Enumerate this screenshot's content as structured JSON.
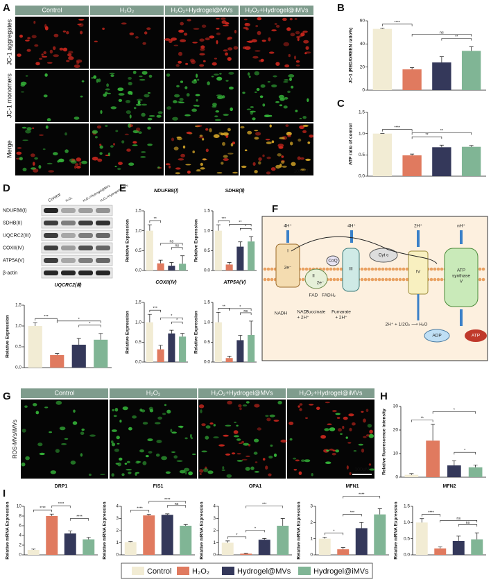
{
  "panel_labels": [
    "A",
    "B",
    "C",
    "D",
    "E",
    "F",
    "G",
    "H",
    "I"
  ],
  "figure_a": {
    "columns": [
      "Control",
      "H₂O₂",
      "H₂O₂+Hydrogel@MVs",
      "H₂O₂+Hydrogel@iMVs"
    ],
    "rows": [
      "JC-1 aggregates",
      "JC-1 monomers",
      "Merge"
    ],
    "scale_bar": "100μM"
  },
  "figure_d": {
    "lanes": [
      "Control",
      "H₂O₂",
      "H₂O₂+Hydrogel@MVs",
      "H₂O₂+Hydrogel@iMVs"
    ],
    "proteins": [
      "NDUFB8(I)",
      "SDHB(II)",
      "UQCRC2(III)",
      "COXII(IV)",
      "ATP5A(V)",
      "β-actin"
    ]
  },
  "figure_f": {
    "h1": "4H⁺",
    "h3": "4H⁺",
    "h4": "2H⁺",
    "hn": "nH⁺",
    "c1": "I",
    "c2": "II",
    "c3": "III",
    "c4": "IV",
    "cytc": "Cyt c",
    "coq": "CoQ",
    "e1": "2e⁻",
    "e2": "2e⁻",
    "nadh": "NADH",
    "nad": "NAD⁺",
    "nad_h": "+ 2H⁺",
    "fad": "FAD",
    "fadh": "FADH₂",
    "succ": "Succinate",
    "fum": "Fumarate",
    "fum_h": "+ 2H⁺",
    "water": "2H⁺ + 1/2O₂ ⟶ H₂O",
    "atps": "ATP",
    "atps2": "synthase",
    "atps3": "V",
    "adp": "ADP",
    "atp": "ATP"
  },
  "figure_g": {
    "columns": [
      "Control",
      "H₂O₂",
      "H₂O₂+Hydrogel@MVs",
      "H₂O₂+Hydrogel@iMVs"
    ],
    "row": "ROS-MVs/iMVs",
    "scale_bar": "100μM"
  },
  "legend": {
    "items": [
      {
        "name": "Control",
        "color": "#f2ecd4"
      },
      {
        "name": "H₂O₂",
        "color": "#e07a5f"
      },
      {
        "name": "Hydrogel@MVs",
        "color": "#34385a"
      },
      {
        "name": "Hydrogel@iMVs",
        "color": "#80b595"
      }
    ]
  },
  "chart_data": [
    {
      "type": "bar",
      "ylabel": "JC-1 (RED/GREEN ratio%)",
      "ylim": [
        0,
        60
      ],
      "yticks": [
        0,
        20,
        40,
        60
      ],
      "values": [
        53,
        18,
        24,
        34
      ],
      "errors": [
        0.5,
        1.5,
        5,
        3.5
      ],
      "significance": [
        {
          "pair": [
            0,
            1
          ],
          "label": "****"
        },
        {
          "pair": [
            2,
            3
          ],
          "label": "**"
        },
        {
          "pair": [
            1,
            3
          ],
          "label": "ns"
        }
      ]
    },
    {
      "type": "bar",
      "ylabel": "ATP ratio of control",
      "ylim": [
        0,
        1.5
      ],
      "yticks": [
        {
          "value": 0,
          "label": "0.0"
        },
        {
          "value": 0.5,
          "label": "0.5"
        },
        {
          "value": 1,
          "label": "1.0"
        },
        {
          "value": 1.5,
          "label": "1.5"
        }
      ],
      "values": [
        1.0,
        0.49,
        0.68,
        0.69
      ],
      "errors": [
        0.0,
        0.03,
        0.05,
        0.03
      ],
      "significance": [
        {
          "pair": [
            0,
            1
          ],
          "label": "****"
        },
        {
          "pair": [
            1,
            2
          ],
          "label": "**"
        },
        {
          "pair": [
            1,
            3
          ],
          "label": "**"
        }
      ]
    },
    {
      "type": "bar",
      "title": "UQCRC2(Ⅲ)",
      "title_italic": true,
      "ylabel": "Relative Expression",
      "ylim": [
        0,
        1.5
      ],
      "yticks": [
        {
          "value": 0,
          "label": "0.0"
        },
        {
          "value": 0.5,
          "label": "0.5"
        },
        {
          "value": 1,
          "label": "1.0"
        },
        {
          "value": 1.5,
          "label": "1.5"
        }
      ],
      "values": [
        1.0,
        0.3,
        0.55,
        0.67
      ],
      "errors": [
        0.08,
        0.04,
        0.15,
        0.15
      ],
      "significance": [
        {
          "pair": [
            0,
            1
          ],
          "label": "***"
        },
        {
          "pair": [
            2,
            3
          ],
          "label": "*"
        },
        {
          "pair": [
            1,
            3
          ],
          "label": "*"
        }
      ]
    },
    {
      "type": "bar",
      "title": "NDUFB8(Ⅰ)",
      "title_italic": true,
      "ylabel": "Relative Expression",
      "ylim": [
        0,
        1.5
      ],
      "yticks": [
        {
          "value": 0,
          "label": "0.0"
        },
        {
          "value": 0.5,
          "label": "0.5"
        },
        {
          "value": 1,
          "label": "1.0"
        },
        {
          "value": 1.5,
          "label": "1.5"
        }
      ],
      "values": [
        1.0,
        0.18,
        0.12,
        0.17
      ],
      "errors": [
        0.15,
        0.08,
        0.08,
        0.2
      ],
      "significance": [
        {
          "pair": [
            0,
            1
          ],
          "label": "**"
        },
        {
          "pair": [
            2,
            3
          ],
          "label": "ns"
        },
        {
          "pair": [
            1,
            3
          ],
          "label": "ns"
        }
      ]
    },
    {
      "type": "bar",
      "title": "SDHB(Ⅱ)",
      "title_italic": true,
      "ylabel": "Relative Expression",
      "ylim": [
        0,
        1.5
      ],
      "yticks": [
        {
          "value": 0,
          "label": "0.0"
        },
        {
          "value": 0.5,
          "label": "0.5"
        },
        {
          "value": 1,
          "label": "1.0"
        },
        {
          "value": 1.5,
          "label": "1.5"
        }
      ],
      "values": [
        1.0,
        0.15,
        0.6,
        0.73
      ],
      "errors": [
        0.15,
        0.05,
        0.12,
        0.12
      ],
      "significance": [
        {
          "pair": [
            0,
            1
          ],
          "label": "***"
        },
        {
          "pair": [
            2,
            3
          ],
          "label": "*"
        },
        {
          "pair": [
            1,
            3
          ],
          "label": "**"
        }
      ]
    },
    {
      "type": "bar",
      "title": "COXII(Ⅳ)",
      "title_italic": true,
      "ylabel": "Relative Expression",
      "ylim": [
        0,
        1.5
      ],
      "yticks": [
        {
          "value": 0,
          "label": "0.0"
        },
        {
          "value": 0.5,
          "label": "0.5"
        },
        {
          "value": 1,
          "label": "1.0"
        },
        {
          "value": 1.5,
          "label": "1.5"
        }
      ],
      "values": [
        1.0,
        0.32,
        0.72,
        0.64
      ],
      "errors": [
        0.2,
        0.1,
        0.08,
        0.08
      ],
      "significance": [
        {
          "pair": [
            0,
            1
          ],
          "label": "***"
        },
        {
          "pair": [
            2,
            3
          ],
          "label": "*"
        },
        {
          "pair": [
            1,
            3
          ],
          "label": "*"
        }
      ]
    },
    {
      "type": "bar",
      "title": "ATP5A(Ⅴ)",
      "title_italic": true,
      "ylabel": "Relative Expression",
      "ylim": [
        0,
        1.5
      ],
      "yticks": [
        {
          "value": 0,
          "label": "0.0"
        },
        {
          "value": 0.5,
          "label": "0.5"
        },
        {
          "value": 1,
          "label": "1.0"
        },
        {
          "value": 1.5,
          "label": "1.5"
        }
      ],
      "values": [
        1.0,
        0.1,
        0.55,
        0.68
      ],
      "errors": [
        0.25,
        0.05,
        0.12,
        0.35
      ],
      "significance": [
        {
          "pair": [
            0,
            1
          ],
          "label": "**"
        },
        {
          "pair": [
            2,
            3
          ],
          "label": "ns"
        },
        {
          "pair": [
            1,
            3
          ],
          "label": "*"
        }
      ]
    },
    {
      "type": "bar",
      "ylabel": "Relative fluorescence intensity",
      "ylim": [
        0,
        30
      ],
      "yticks": [
        0,
        10,
        20,
        30
      ],
      "values": [
        1,
        15.5,
        5,
        4.2
      ],
      "errors": [
        0.5,
        7,
        2,
        1
      ],
      "significance": [
        {
          "pair": [
            0,
            1
          ],
          "label": "**"
        },
        {
          "pair": [
            2,
            3
          ],
          "label": "*"
        },
        {
          "pair": [
            1,
            3
          ],
          "label": "*"
        }
      ]
    },
    {
      "type": "bar",
      "title": "DRP1",
      "ylabel": "Relative mRNA Expression",
      "ylim": [
        0,
        10
      ],
      "yticks": [
        0,
        2,
        4,
        6,
        8,
        10
      ],
      "values": [
        1,
        8,
        4.4,
        3.2
      ],
      "errors": [
        0.2,
        0.4,
        0.5,
        0.4
      ],
      "significance": [
        {
          "pair": [
            0,
            1
          ],
          "label": "****"
        },
        {
          "pair": [
            1,
            2
          ],
          "label": "****"
        },
        {
          "pair": [
            2,
            3
          ],
          "label": "****"
        }
      ]
    },
    {
      "type": "bar",
      "title": "FIS1",
      "ylabel": "Relative mRNA Expression",
      "ylim": [
        0,
        4
      ],
      "yticks": [
        0,
        1,
        2,
        3,
        4
      ],
      "values": [
        1.05,
        3.25,
        3.3,
        2.4
      ],
      "errors": [
        0.05,
        0.08,
        0.08,
        0.1
      ],
      "significance": [
        {
          "pair": [
            0,
            1
          ],
          "label": "****"
        },
        {
          "pair": [
            2,
            3
          ],
          "label": "ns"
        },
        {
          "pair": [
            1,
            3
          ],
          "label": "****"
        }
      ]
    },
    {
      "type": "bar",
      "title": "OPA1",
      "ylabel": "Relative mRNA Expression",
      "ylim": [
        0,
        4
      ],
      "yticks": [
        0,
        1,
        2,
        3,
        4
      ],
      "values": [
        1.0,
        0.1,
        1.25,
        2.4
      ],
      "errors": [
        0.15,
        0.05,
        0.1,
        0.6
      ],
      "significance": [
        {
          "pair": [
            0,
            1
          ],
          "label": "*"
        },
        {
          "pair": [
            1,
            2
          ],
          "label": "*"
        },
        {
          "pair": [
            1,
            3
          ],
          "label": "***"
        }
      ]
    },
    {
      "type": "bar",
      "title": "MFN1",
      "ylabel": "Relative mRNA Expression",
      "ylim": [
        0,
        3
      ],
      "yticks": [
        0,
        1,
        2,
        3
      ],
      "values": [
        1.0,
        0.35,
        1.65,
        2.5
      ],
      "errors": [
        0.1,
        0.1,
        0.35,
        0.35
      ],
      "significance": [
        {
          "pair": [
            0,
            1
          ],
          "label": "*"
        },
        {
          "pair": [
            1,
            2
          ],
          "label": "***"
        },
        {
          "pair": [
            1,
            3
          ],
          "label": "****"
        }
      ]
    },
    {
      "type": "bar",
      "title": "MFN2",
      "ylabel": "Relative mRNA Expression",
      "ylim": [
        0,
        1.5
      ],
      "yticks": [
        {
          "value": 0,
          "label": "0.0"
        },
        {
          "value": 0.5,
          "label": "0.5"
        },
        {
          "value": 1,
          "label": "1.0"
        },
        {
          "value": 1.5,
          "label": "1.5"
        }
      ],
      "values": [
        1.0,
        0.2,
        0.43,
        0.48
      ],
      "errors": [
        0.12,
        0.05,
        0.15,
        0.2
      ],
      "significance": [
        {
          "pair": [
            0,
            1
          ],
          "label": "****"
        },
        {
          "pair": [
            2,
            3
          ],
          "label": "ns"
        },
        {
          "pair": [
            1,
            3
          ],
          "label": "ns"
        }
      ]
    }
  ]
}
